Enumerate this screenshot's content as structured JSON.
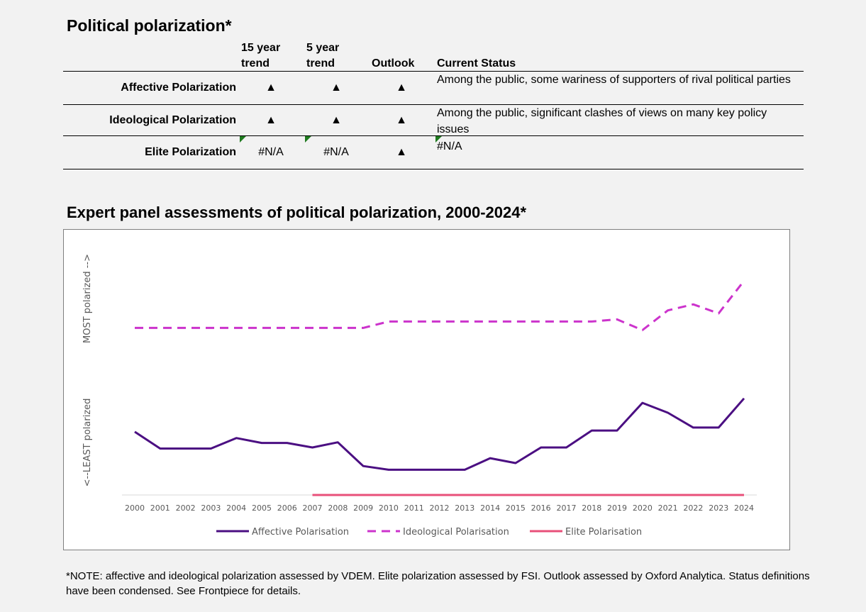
{
  "page": {
    "title": "Political polarization*",
    "table": {
      "headers": {
        "trend15": [
          "15 year",
          "trend"
        ],
        "trend5": [
          "5 year",
          "trend"
        ],
        "outlook": "Outlook",
        "status": "Current Status"
      },
      "rows": [
        {
          "label": "Affective Polarization",
          "trend15": "▲",
          "trend5": "▲",
          "outlook": "▲",
          "status": "Among the public, some wariness of supporters of rival political parties"
        },
        {
          "label": "Ideological Polarization",
          "trend15": "▲",
          "trend5": "▲",
          "outlook": "▲",
          "status": "Among the public, significant clashes of views on many key policy issues"
        },
        {
          "label": "Elite Polarization",
          "trend15": "#N/A",
          "trend5": "#N/A",
          "outlook": "▲",
          "status": "#N/A"
        }
      ]
    },
    "chart_title": "Expert panel assessments of political polarization, 2000-2024*",
    "footnote": "*NOTE: affective and ideological polarization assessed by VDEM. Elite polarization assessed by FSI. Outlook assessed by Oxford Analytica. Status definitions have been condensed. See Frontpiece for details.",
    "colors": {
      "affective": "#4b0f82",
      "ideological": "#cc33cc",
      "elite": "#e8507a",
      "flag": "#1f7a1f"
    }
  },
  "chart_data": {
    "type": "line",
    "title": "Expert panel assessments of political polarization, 2000-2024*",
    "ylabel_top": "MOST polarized -->",
    "ylabel_bottom": "<--LEAST polarized",
    "x": [
      "2000",
      "2001",
      "2002",
      "2003",
      "2004",
      "2005",
      "2006",
      "2007",
      "2008",
      "2009",
      "2010",
      "2011",
      "2012",
      "2013",
      "2014",
      "2015",
      "2016",
      "2017",
      "2018",
      "2019",
      "2020",
      "2021",
      "2022",
      "2023",
      "2024"
    ],
    "ylim": [
      0,
      1
    ],
    "legend_position": "bottom",
    "grid": false,
    "series": [
      {
        "name": "Affective Polarisation",
        "style": "solid",
        "color": "#4b0f82",
        "values": [
          0.295,
          0.217,
          0.217,
          0.217,
          0.266,
          0.243,
          0.243,
          0.222,
          0.246,
          0.135,
          0.118,
          0.118,
          0.118,
          0.118,
          0.172,
          0.149,
          0.222,
          0.222,
          0.301,
          0.301,
          0.43,
          0.384,
          0.315,
          0.315,
          0.451
        ]
      },
      {
        "name": "Ideological Polarisation",
        "style": "dashed",
        "color": "#cc33cc",
        "values": [
          0.78,
          0.78,
          0.78,
          0.78,
          0.78,
          0.78,
          0.78,
          0.78,
          0.78,
          0.78,
          0.81,
          0.81,
          0.81,
          0.81,
          0.81,
          0.81,
          0.81,
          0.81,
          0.81,
          0.82,
          0.77,
          0.862,
          0.89,
          0.848,
          1.0
        ]
      },
      {
        "name": "Elite Polarisation",
        "style": "solid",
        "color": "#e8507a",
        "values": [
          null,
          null,
          null,
          null,
          null,
          null,
          null,
          0.0,
          0.0,
          0.0,
          0.0,
          0.0,
          0.0,
          0.0,
          0.0,
          0.0,
          0.0,
          0.0,
          0.0,
          0.0,
          0.0,
          0.0,
          0.0,
          0.0,
          0.0
        ]
      }
    ]
  }
}
